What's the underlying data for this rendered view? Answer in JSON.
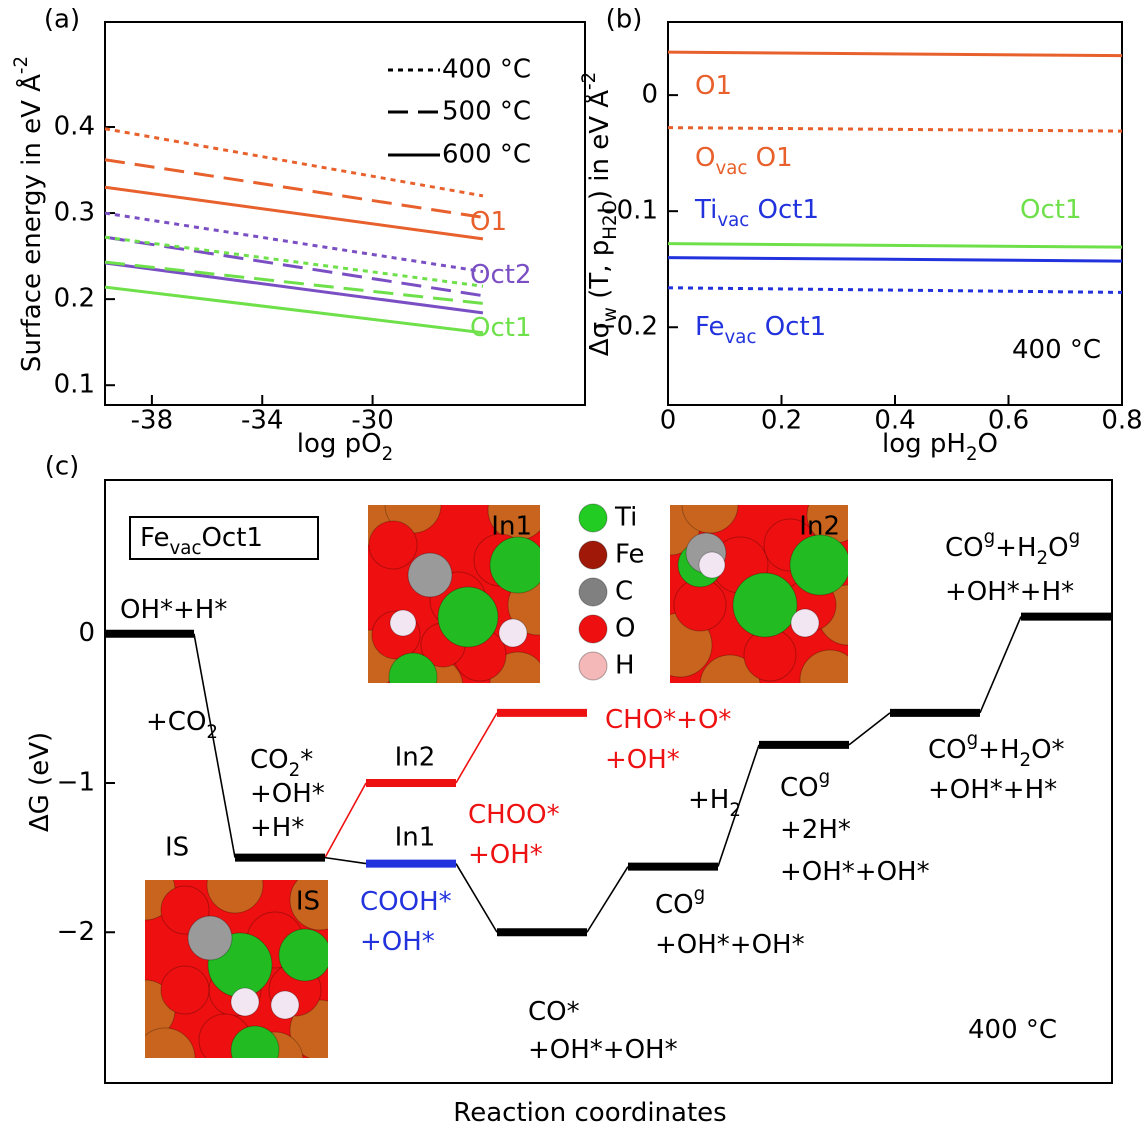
{
  "chart_data": [
    {
      "type": "line",
      "panel_label": "(a)",
      "xlabel": [
        "log pO",
        {
          "sub": "2"
        }
      ],
      "ylabel": [
        "Surface energy in eV Å",
        {
          "sup": "-2"
        }
      ],
      "x": [
        -39.7,
        -26
      ],
      "xlim": [
        -39.7,
        -22.3
      ],
      "xticks": [
        -38,
        -34,
        -30
      ],
      "ylim": [
        0.077,
        0.522
      ],
      "yticks": [
        0.1,
        0.2,
        0.3,
        0.4
      ],
      "series": [
        {
          "color": "#e8602c",
          "style": "dotted",
          "values": [
            0.398,
            0.32
          ]
        },
        {
          "color": "#e8602c",
          "style": "dashed",
          "values": [
            0.362,
            0.295
          ]
        },
        {
          "color": "#e8602c",
          "style": "solid",
          "values": [
            0.33,
            0.27
          ]
        },
        {
          "color": "#7b4fc4",
          "style": "dotted",
          "values": [
            0.3,
            0.232
          ]
        },
        {
          "color": "#7b4fc4",
          "style": "dashed",
          "values": [
            0.272,
            0.204
          ]
        },
        {
          "color": "#7b4fc4",
          "style": "solid",
          "values": [
            0.242,
            0.184
          ]
        },
        {
          "color": "#6ee04a",
          "style": "dotted",
          "values": [
            0.272,
            0.215
          ]
        },
        {
          "color": "#6ee04a",
          "style": "dashed",
          "values": [
            0.243,
            0.195
          ]
        },
        {
          "color": "#6ee04a",
          "style": "solid",
          "values": [
            0.214,
            0.161
          ]
        }
      ],
      "legend": [
        {
          "label": "400 °C",
          "style": "dotted"
        },
        {
          "label": "500 °C",
          "style": "dashed"
        },
        {
          "label": "600 °C",
          "style": "solid"
        }
      ],
      "annotations": [
        {
          "text": [
            "O1"
          ],
          "color": "#e8602c"
        },
        {
          "text": [
            "Oct2"
          ],
          "color": "#7b4fc4"
        },
        {
          "text": [
            "Oct1"
          ],
          "color": "#6ee04a"
        }
      ]
    },
    {
      "type": "line",
      "panel_label": "(b)",
      "xlabel": [
        "log pH",
        {
          "sub": "2"
        },
        "O"
      ],
      "ylabel": [
        "Δσ",
        {
          "sub": "w"
        },
        " (T, p",
        {
          "sub": "H2O"
        },
        ") in eV Å",
        {
          "sup": "-2"
        }
      ],
      "x": [
        0,
        0.8
      ],
      "xlim": [
        0,
        0.8
      ],
      "xticks": [
        0,
        0.2,
        0.4,
        0.6,
        0.8
      ],
      "ylim": [
        -0.267,
        0.063
      ],
      "yticks": [
        0,
        {
          "value": -0.1,
          "label": "−0.1"
        },
        {
          "value": -0.2,
          "label": "−0.2"
        }
      ],
      "series": [
        {
          "color": "#e8602c",
          "style": "solid",
          "values": [
            0.037,
            0.034
          ]
        },
        {
          "color": "#e8602c",
          "style": "dotted",
          "values": [
            -0.028,
            -0.031
          ]
        },
        {
          "color": "#6ee04a",
          "style": "solid",
          "values": [
            -0.128,
            -0.131
          ]
        },
        {
          "color": "#2233dd",
          "style": "solid",
          "values": [
            -0.14,
            -0.143
          ]
        },
        {
          "color": "#2233dd",
          "style": "dotted",
          "values": [
            -0.166,
            -0.17
          ]
        }
      ],
      "annotations": [
        {
          "text": [
            "O1"
          ],
          "color": "#e8602c"
        },
        {
          "text": [
            "O",
            {
              "sub": "vac"
            },
            " O1"
          ],
          "color": "#e8602c"
        },
        {
          "text": [
            "Ti",
            {
              "sub": "vac"
            },
            " Oct1"
          ],
          "color": "#2233dd"
        },
        {
          "text": [
            "Oct1"
          ],
          "color": "#6ee04a"
        },
        {
          "text": [
            "Fe",
            {
              "sub": "vac"
            },
            " Oct1"
          ],
          "color": "#2233dd"
        },
        {
          "text": [
            "400 °C"
          ],
          "color": "#000000"
        }
      ]
    },
    {
      "type": "energy",
      "panel_label": "(c)",
      "xlabel": [
        "Reaction coordinates"
      ],
      "ylabel": [
        "ΔG  (eV)"
      ],
      "ylim": [
        -3.01,
        1.03
      ],
      "yticks": [
        0,
        {
          "value": -1,
          "label": "−1"
        },
        {
          "value": -2,
          "label": "−2"
        }
      ],
      "levels": [
        {
          "x": 0,
          "value": 0,
          "color": "#000000",
          "label": [
            [
              "OH*+H*"
            ]
          ]
        },
        {
          "x": 1,
          "value": -1.5,
          "color": "#000000",
          "tag": "IS",
          "label": [
            [
              "CO",
              {
                "sub": "2"
              },
              "*"
            ],
            [
              "+OH*"
            ],
            [
              "+H*"
            ]
          ]
        },
        {
          "x": 2,
          "value": -1.0,
          "color": "#ee1111",
          "tag": "In2",
          "label": [
            [
              "CHOO*"
            ],
            [
              "+OH*"
            ]
          ]
        },
        {
          "x": 2,
          "value": -1.54,
          "color": "#2233dd",
          "tag": "In1",
          "label": [
            [
              "COOH*"
            ],
            [
              "+OH*"
            ]
          ]
        },
        {
          "x": 3,
          "value": -0.53,
          "color": "#ee1111",
          "label": [
            [
              "CHO*+O*"
            ],
            [
              "+OH*"
            ]
          ]
        },
        {
          "x": 3,
          "value": -2.0,
          "color": "#000000",
          "label": [
            [
              "CO*"
            ],
            [
              "+OH*+OH*"
            ]
          ]
        },
        {
          "x": 4,
          "value": -1.56,
          "color": "#000000",
          "label": [
            [
              "CO",
              {
                "sup": "g"
              }
            ],
            [
              "+OH*+OH*"
            ]
          ]
        },
        {
          "x": 5,
          "value": -0.745,
          "color": "#000000",
          "label": [
            [
              "CO",
              {
                "sup": "g"
              }
            ],
            [
              "+2H*"
            ],
            [
              "+OH*+OH*"
            ]
          ]
        },
        {
          "x": 6,
          "value": -0.53,
          "color": "#000000",
          "label": [
            [
              "CO",
              {
                "sup": "g"
              },
              "+H",
              {
                "sub": "2"
              },
              "O*"
            ],
            [
              "+OH*+H*"
            ]
          ]
        },
        {
          "x": 7,
          "value": 0.115,
          "color": "#000000",
          "label": [
            [
              "CO",
              {
                "sup": "g"
              },
              "+H",
              {
                "sub": "2"
              },
              "O",
              {
                "sup": "g"
              }
            ],
            [
              "+OH*+H*"
            ]
          ]
        }
      ],
      "links": [
        {
          "from": 0,
          "to": 1,
          "color": "#000000"
        },
        {
          "from": 1,
          "to": 2,
          "color": "#ee1111"
        },
        {
          "from": 1,
          "to": 3,
          "color": "#000000"
        },
        {
          "from": 2,
          "to": 4,
          "color": "#ee1111"
        },
        {
          "from": 3,
          "to": 5,
          "color": "#000000"
        },
        {
          "from": 5,
          "to": 6,
          "color": "#000000"
        },
        {
          "from": 6,
          "to": 7,
          "color": "#000000"
        },
        {
          "from": 7,
          "to": 8,
          "color": "#000000"
        },
        {
          "from": 8,
          "to": 9,
          "color": "#000000"
        }
      ],
      "annotations": [
        {
          "text": [
            "+CO",
            {
              "sub": "2"
            }
          ],
          "color": "#000000"
        },
        {
          "text": [
            "+H",
            {
              "sub": "2"
            }
          ],
          "color": "#000000"
        },
        {
          "text": [
            "400 °C"
          ],
          "color": "#000000"
        },
        {
          "text": [
            "Fe",
            {
              "sub": "vac"
            },
            "Oct1"
          ],
          "color": "#000000"
        }
      ],
      "insets": [
        {
          "label": "In1"
        },
        {
          "label": "In2"
        },
        {
          "label": "IS"
        }
      ],
      "atoms": [
        {
          "label": "Ti",
          "color": "#22cc22"
        },
        {
          "label": "Fe",
          "color": "#a01808"
        },
        {
          "label": "C",
          "color": "#808080"
        },
        {
          "label": "O",
          "color": "#ee1010"
        },
        {
          "label": "H",
          "color": "#f4b8b8"
        }
      ]
    }
  ]
}
